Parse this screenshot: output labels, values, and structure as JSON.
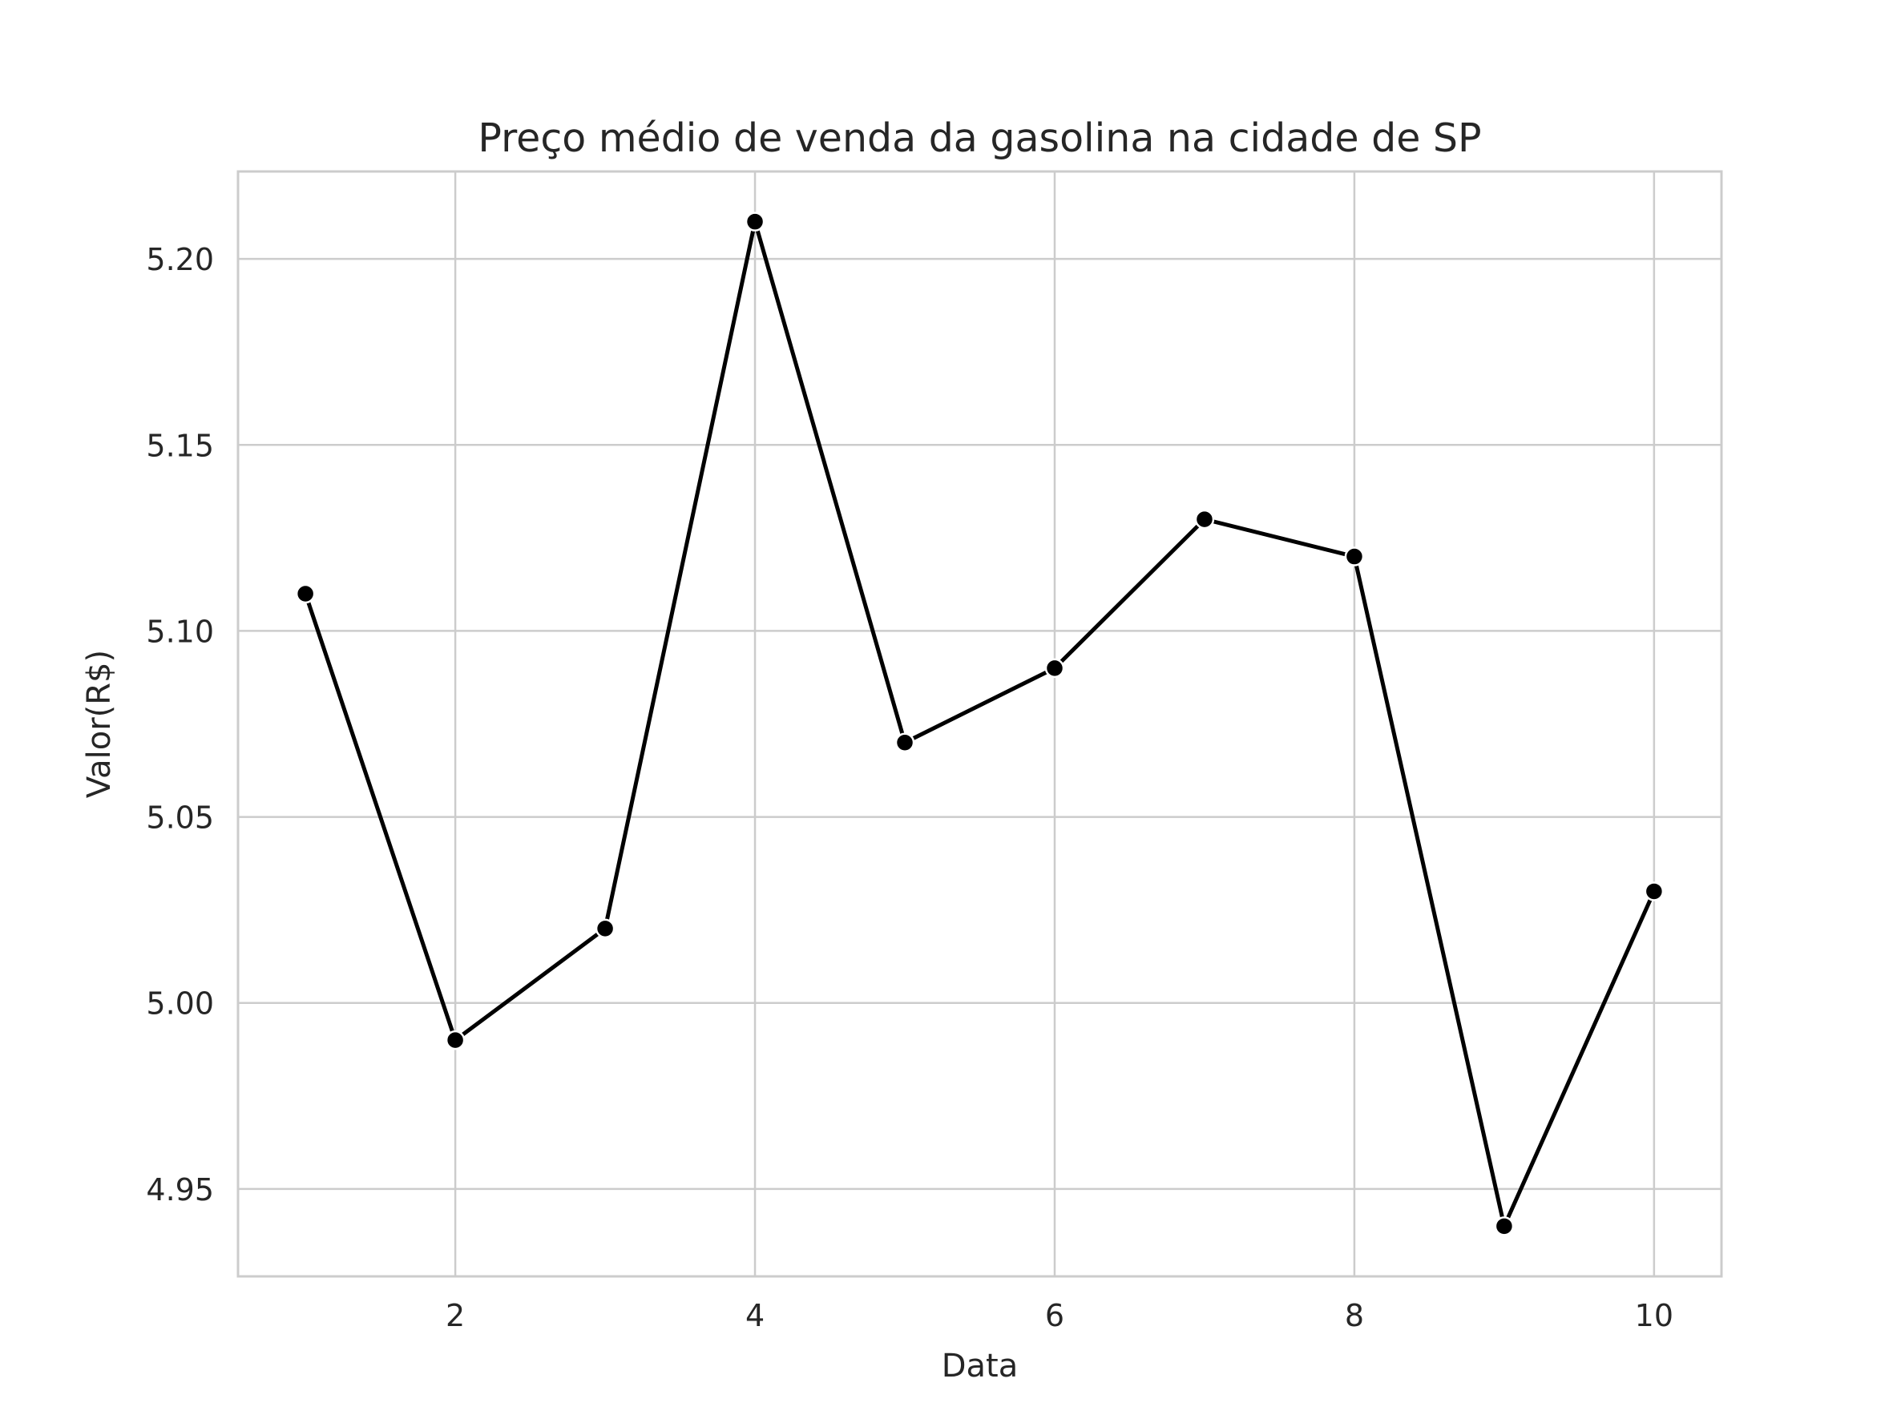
{
  "chart_data": {
    "type": "line",
    "title": "Preço médio de venda da gasolina na cidade de SP",
    "xlabel": "Data",
    "ylabel": "Valor(R$)",
    "x": [
      1,
      2,
      3,
      4,
      5,
      6,
      7,
      8,
      9,
      10
    ],
    "series": [
      {
        "values": [
          5.11,
          4.99,
          5.02,
          5.21,
          5.07,
          5.09,
          5.13,
          5.12,
          4.94,
          5.03
        ],
        "color": "#000000",
        "marker": "circle"
      }
    ],
    "xlim": [
      0.55,
      10.45
    ],
    "ylim": [
      4.9265,
      5.2235
    ],
    "xticks": [
      2,
      4,
      6,
      8,
      10
    ],
    "xtick_labels": [
      "2",
      "4",
      "6",
      "8",
      "10"
    ],
    "yticks": [
      4.95,
      5.0,
      5.05,
      5.1,
      5.15,
      5.2
    ],
    "ytick_labels": [
      "4.95",
      "5.00",
      "5.05",
      "5.10",
      "5.15",
      "5.20"
    ],
    "grid": true,
    "grid_color": "#cccccc",
    "text_color": "#262626",
    "background": "#ffffff"
  }
}
